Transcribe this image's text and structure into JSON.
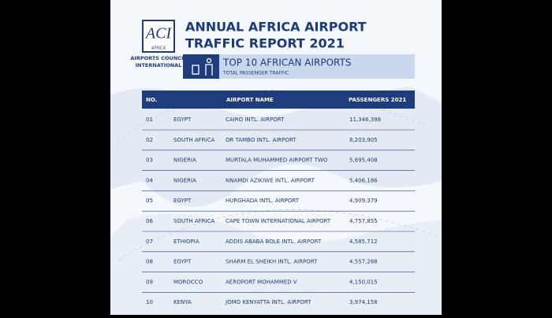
{
  "logo": {
    "mark": "ACI",
    "region": "AFRICA",
    "line1": "AIRPORTS COUNCIL",
    "line2": "INTERNATIONAL"
  },
  "header": {
    "title_line1": "ANNUAL AFRICA AIRPORT",
    "title_line2": "TRAFFIC REPORT 2021",
    "banner_title": "TOP 10 AFRICAN AIRPORTS",
    "banner_subtitle": "TOTAL PASSENGER TRAFFIC"
  },
  "table": {
    "columns": [
      "NO.",
      "AIRPORT NAME",
      "PASSENGERS 2021"
    ],
    "rows": [
      [
        "01",
        "EGYPT",
        "CAIRO INTL. AIRPORT",
        "11,346,398"
      ],
      [
        "02",
        "SOUTH AFRICA",
        "OR TAMBO INTL. AIRPORT",
        "8,203,905"
      ],
      [
        "03",
        "NIGERIA",
        "MURTALA MUHAMMED AIRPORT TWO",
        "5,695,408"
      ],
      [
        "04",
        "NIGERIA",
        "NNAMDI AZIKIWE INTL. AIRPORT",
        "5,406,186"
      ],
      [
        "05",
        "EGYPT",
        "HURGHADA INTL. AIRPORT",
        "4,909,379"
      ],
      [
        "06",
        "SOUTH AFRICA",
        "CAPE TOWN INTERNATIONAL AIRPORT",
        "4,757,855"
      ],
      [
        "07",
        "ETHIOPIA",
        "ADDIS ABABA BOLE INTL. AIRPORT",
        "4,585,712"
      ],
      [
        "08",
        "EGYPT",
        "SHARM EL SHEIKH INTL. AIRPORT",
        "4,557,288"
      ],
      [
        "09",
        "MOROCCO",
        "AÉROPORT MOHAMMED V",
        "4,150,015"
      ],
      [
        "10",
        "KENYA",
        "JOMO KENYATTA INTL. AIRPORT",
        "3,974,158"
      ]
    ]
  }
}
